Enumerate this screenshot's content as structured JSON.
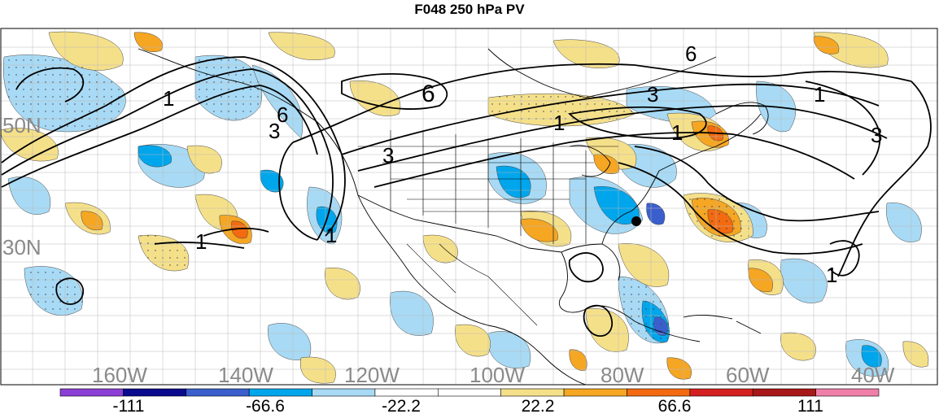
{
  "title": "F048 250 hPa PV",
  "lat_labels": [
    "50N",
    "30N"
  ],
  "lon_labels": [
    "160W",
    "140W",
    "120W",
    "100W",
    "80W",
    "60W",
    "40W"
  ],
  "contour_labels": [
    "1",
    "3",
    "6",
    "6",
    "3",
    "1",
    "6",
    "3",
    "1",
    "1",
    "3",
    "1",
    "1",
    "1"
  ],
  "colorbar": {
    "ticks": [
      "-111",
      "-66.6",
      "-22.2",
      "22.2",
      "66.6",
      "111"
    ],
    "colors": [
      "#8b3fd6",
      "#0a0a8c",
      "#3a5fcd",
      "#00a6ec",
      "#a8daf5",
      "#ffffff",
      "#ffffff",
      "#f5e08a",
      "#f5a623",
      "#f36a10",
      "#d42020",
      "#a81818",
      "#f07fa8"
    ]
  },
  "colors": {
    "light_blue": "#a8daf5",
    "mid_blue": "#00a6ec",
    "dark_blue": "#3a5fcd",
    "light_orange": "#f5e08a",
    "orange": "#f5a623",
    "red_orange": "#f36a10"
  },
  "marker": "storm-center-dot"
}
